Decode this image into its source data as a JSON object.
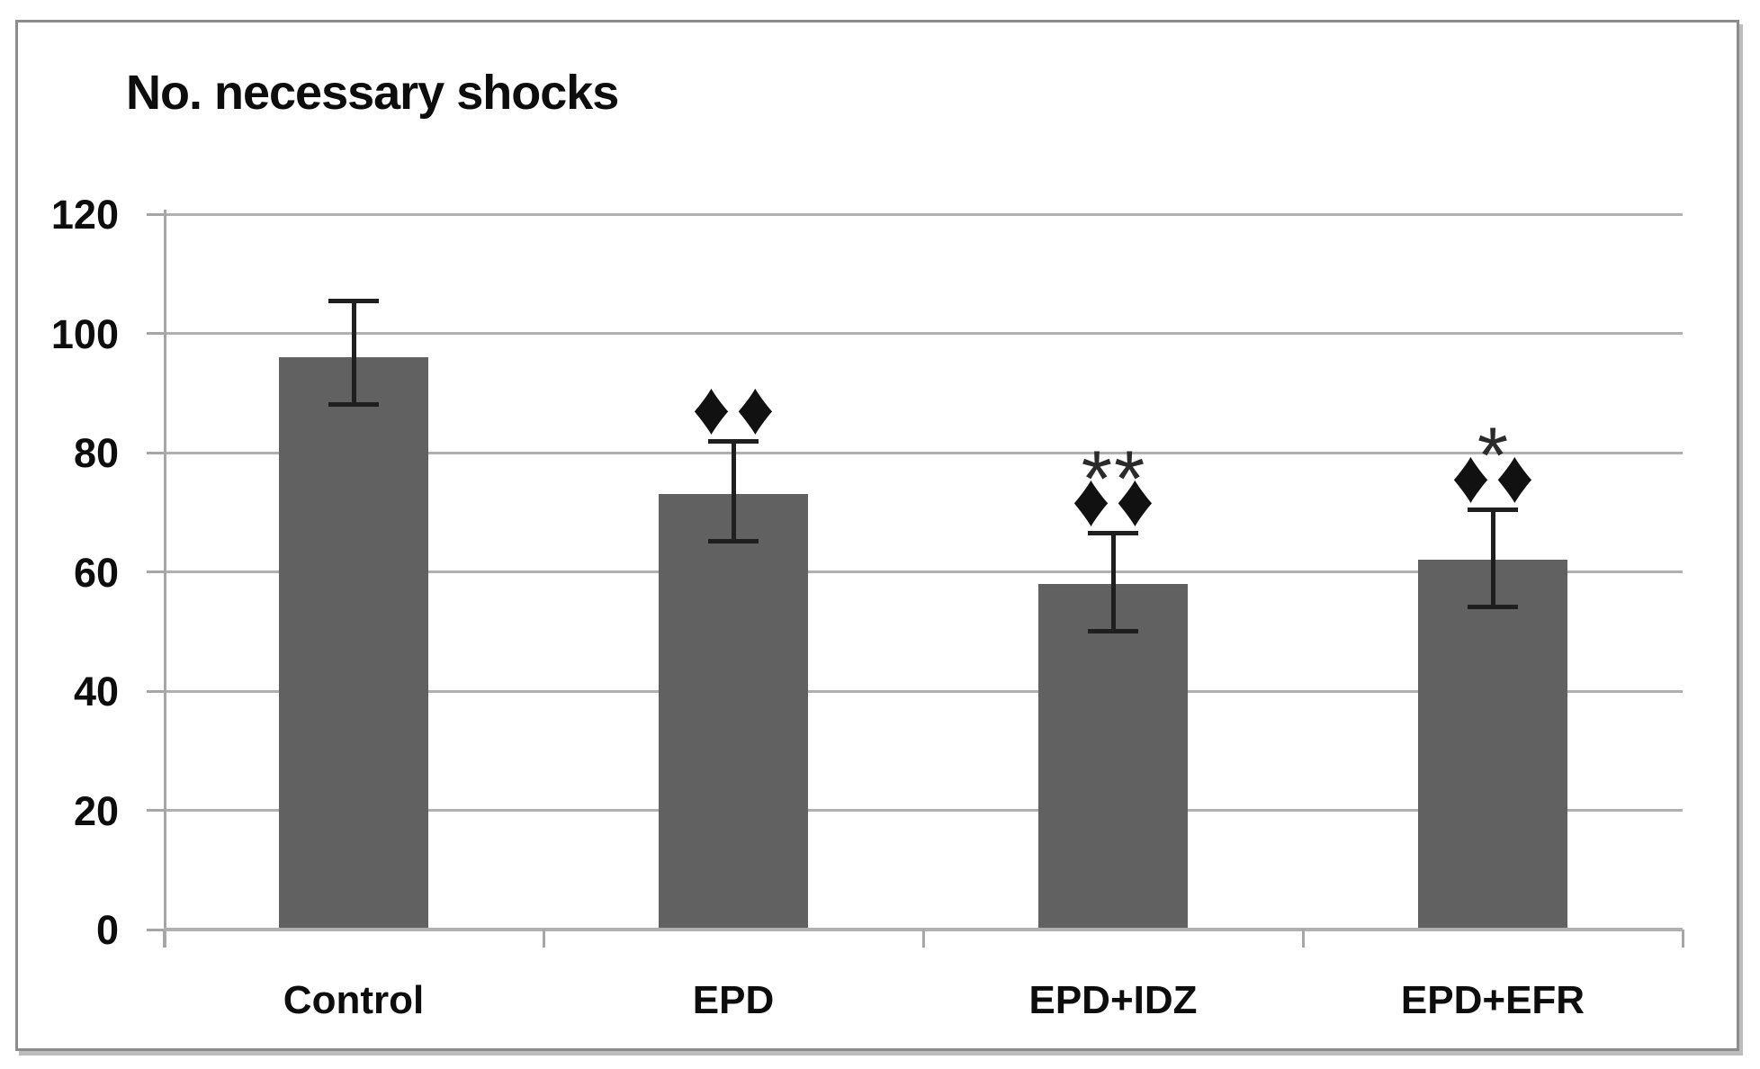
{
  "figure": {
    "title": "No. necessary shocks"
  },
  "chart_data": {
    "type": "bar",
    "title": "No. necessary shocks",
    "categories": [
      "Control",
      "EPD",
      "EPD+IDZ",
      "EPD+EFR"
    ],
    "values": [
      96,
      73,
      58,
      62
    ],
    "error_bars": {
      "upper": [
        105.5,
        82,
        66.5,
        70.5
      ],
      "lower": [
        88,
        65,
        50,
        54
      ]
    },
    "annotations": [
      [],
      [
        "♦♦"
      ],
      [
        "**",
        "♦♦"
      ],
      [
        "*",
        "♦♦"
      ]
    ],
    "xlabel": "",
    "ylabel": "",
    "ylim": [
      0,
      120
    ],
    "yticks": [
      0,
      20,
      40,
      60,
      80,
      100,
      120
    ],
    "grid": true,
    "legend": "none",
    "colors": {
      "bar_fill": "#616161",
      "gridline": "#b0b0b0",
      "axis": "#a6a6a6",
      "error_bar": "#1f1f1f",
      "text": "#0d0d0d",
      "border": "#8c8c8c"
    }
  }
}
